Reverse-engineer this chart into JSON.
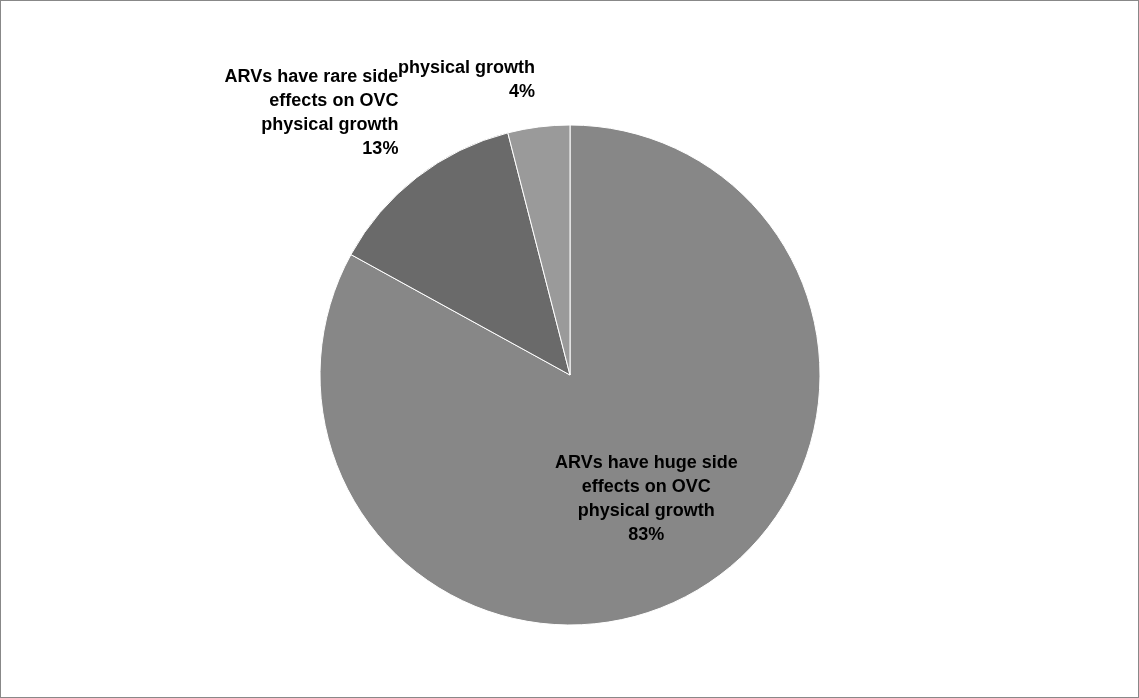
{
  "chart_data": {
    "type": "pie",
    "categories": [
      "ARVs have huge side effects on OVC physical growth",
      "ARVs have rare side effects on OVC physical growth",
      "physical growth"
    ],
    "values": [
      83,
      13,
      4
    ],
    "colors": [
      "#878787",
      "#6a6a6a",
      "#9a9a9a"
    ],
    "value_labels": [
      "83%",
      "13%",
      "4%"
    ],
    "legend": false
  }
}
